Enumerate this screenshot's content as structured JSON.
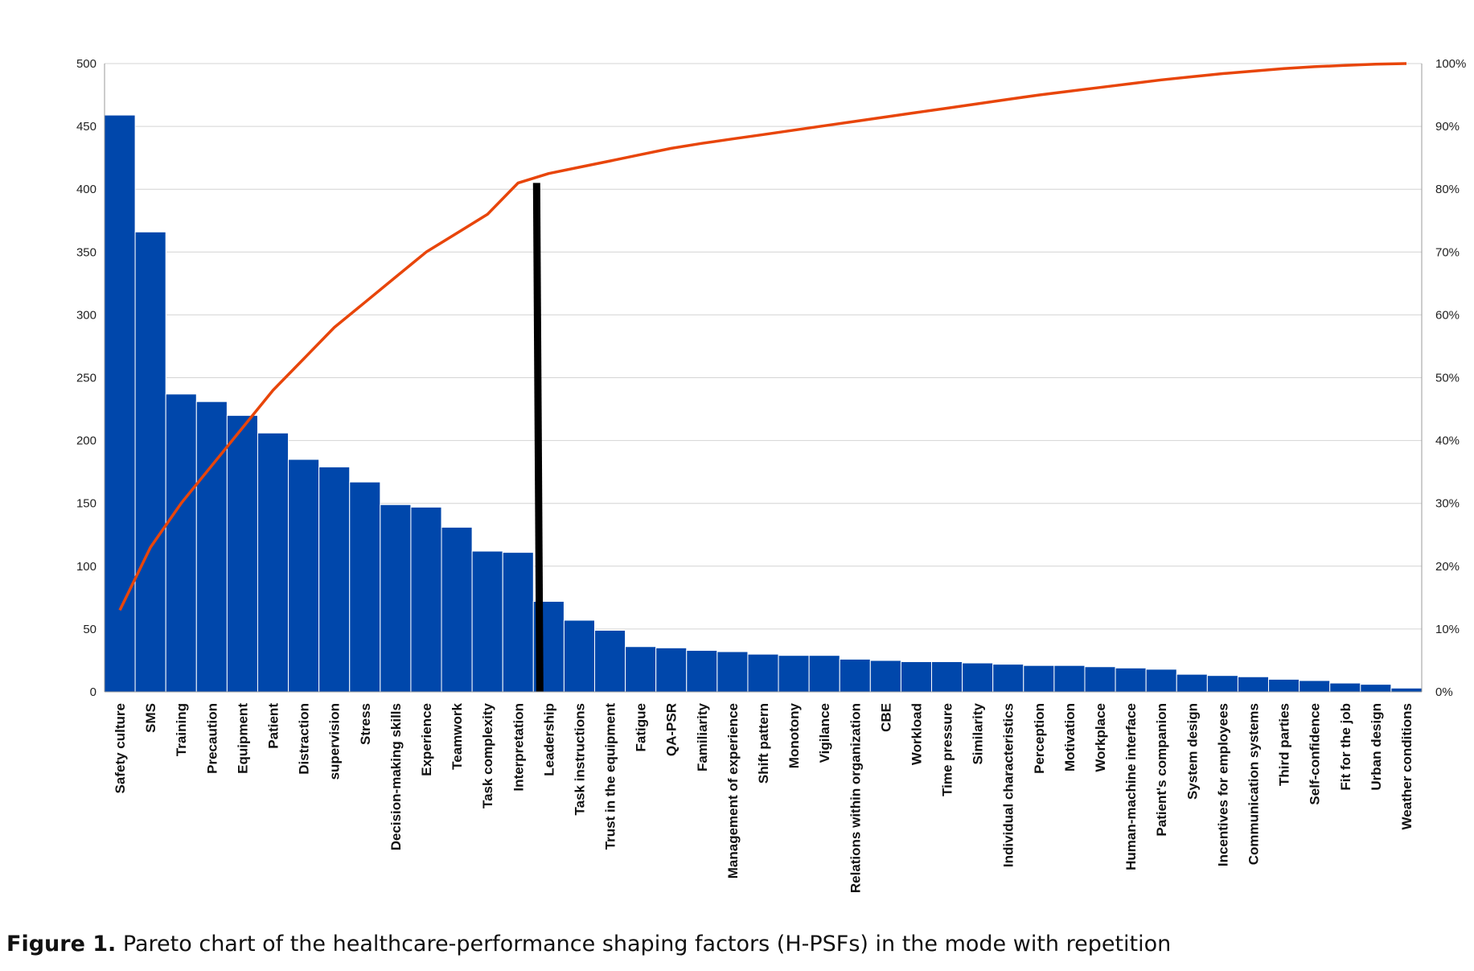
{
  "caption": {
    "label": "Figure 1.",
    "text": "Pareto chart of the healthcare-performance shaping factors (H-PSFs) in the mode with repetition"
  },
  "colors": {
    "bar": "#0047AB",
    "bar_edge": "#ffffff",
    "cumulative_line": "#E8450A",
    "cutoff_line": "#000000",
    "grid": "#d4d4d4",
    "axis": "#9a9a9a"
  },
  "chart_data": {
    "type": "bar",
    "categories": [
      "Safety culture",
      "SMS",
      "Training",
      "Precaution",
      "Equipment",
      "Patient",
      "Distraction",
      "supervision",
      "Stress",
      "Decision-making skills",
      "Experience",
      "Teamwork",
      "Task complexity",
      "Interpretation",
      "Leadership",
      "Task instructions",
      "Trust in the equipment",
      "Fatigue",
      "QA-PSR",
      "Familiarity",
      "Management of experience",
      "Shift pattern",
      "Monotony",
      "Vigilance",
      "Relations within organization",
      "CBE",
      "Workload",
      "Time pressure",
      "Similarity",
      "Individual characteristics",
      "Perception",
      "Motivation",
      "Workplace",
      "Human-machine interface",
      "Patient's companion",
      "System design",
      "Incentives for employees",
      "Communication systems",
      "Third parties",
      "Self-confidence",
      "Fit for the job",
      "Urban design",
      "Weather conditions"
    ],
    "series": [
      {
        "type": "bar",
        "values": [
          459,
          366,
          237,
          231,
          220,
          206,
          185,
          179,
          167,
          149,
          147,
          131,
          112,
          111,
          72,
          57,
          49,
          36,
          35,
          33,
          32,
          30,
          29,
          29,
          26,
          25,
          24,
          24,
          23,
          22,
          21,
          21,
          20,
          19,
          18,
          14,
          13,
          12,
          10,
          9,
          7,
          6,
          3
        ]
      },
      {
        "type": "line",
        "axis": "right",
        "values": [
          13,
          23,
          30,
          36,
          42,
          48,
          53,
          58,
          62,
          66,
          70,
          73,
          76,
          81,
          82.5,
          83.5,
          84.5,
          85.5,
          86.5,
          87.3,
          88,
          88.7,
          89.4,
          90.1,
          90.8,
          91.5,
          92.2,
          92.9,
          93.6,
          94.3,
          95,
          95.6,
          96.2,
          96.8,
          97.4,
          97.9,
          98.4,
          98.8,
          99.2,
          99.5,
          99.7,
          99.9,
          100
        ]
      }
    ],
    "cutoff_after": "Interpretation",
    "ylim": [
      0,
      500
    ],
    "yticks": [
      "0",
      "50",
      "100",
      "150",
      "200",
      "250",
      "300",
      "350",
      "400",
      "450",
      "500"
    ],
    "y2lim": [
      0,
      100
    ],
    "y2ticks": [
      "0%",
      "10%",
      "20%",
      "30%",
      "40%",
      "50%",
      "60%",
      "70%",
      "80%",
      "90%",
      "100%"
    ],
    "grid": true,
    "title": "",
    "xlabel": "",
    "ylabel": ""
  }
}
